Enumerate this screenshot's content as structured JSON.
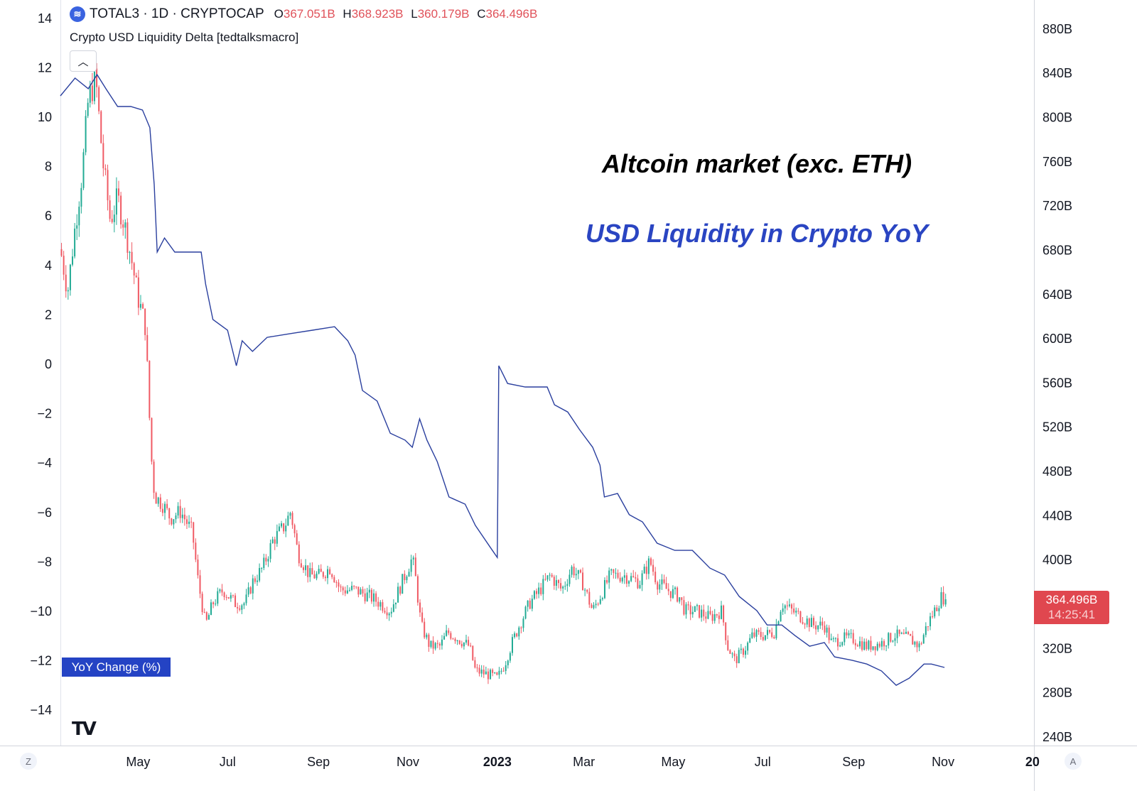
{
  "header": {
    "symbol": "TOTAL3 · 1D · CRYPTOCAP",
    "open_label": "O",
    "open": "367.051B",
    "high_label": "H",
    "high": "368.923B",
    "low_label": "L",
    "low": "360.179B",
    "close_label": "C",
    "close": "364.496B",
    "indicator": "Crypto USD Liquidity Delta [tedtalksmacro]",
    "collapse_icon": "chevron-up-icon"
  },
  "annotations": {
    "title1": "Altcoin market (exc. ETH)",
    "title2": "USD Liquidity in Crypto YoY"
  },
  "legend": {
    "label": "YoY Change (%)"
  },
  "price_tag": {
    "price": "364.496B",
    "countdown": "14:25:41"
  },
  "bottom": {
    "left_button": "Z",
    "right_button": "A"
  },
  "colors": {
    "up": "#22ab94",
    "down": "#f05a64",
    "line": "#2a3f9e",
    "accent": "#2443c4"
  },
  "chart_data": {
    "type": "candlestick+line",
    "x_origin": "2022-03-09",
    "x_units": "days since origin",
    "xlim": [
      0,
      664
    ],
    "x_ticks": [
      {
        "day": 53,
        "label": "May"
      },
      {
        "day": 114,
        "label": "Jul"
      },
      {
        "day": 176,
        "label": "Sep"
      },
      {
        "day": 237,
        "label": "Nov"
      },
      {
        "day": 298,
        "label": "2023",
        "bold": true
      },
      {
        "day": 357,
        "label": "Mar"
      },
      {
        "day": 418,
        "label": "May"
      },
      {
        "day": 479,
        "label": "Jul"
      },
      {
        "day": 541,
        "label": "Sep"
      },
      {
        "day": 602,
        "label": "Nov"
      },
      {
        "day": 663,
        "label": "20",
        "bold": true
      }
    ],
    "left_axis": {
      "label": "YoY Change (%)",
      "ylim": [
        -15.43,
        14.74
      ],
      "ticks": [
        14,
        12,
        10,
        8,
        6,
        4,
        2,
        0,
        -2,
        -4,
        -6,
        -8,
        -10,
        -12,
        -14
      ]
    },
    "right_axis": {
      "ylim": [
        232.3,
        906.2
      ],
      "ticks": [
        880,
        840,
        800,
        760,
        720,
        680,
        640,
        600,
        560,
        520,
        480,
        440,
        400,
        320,
        280,
        240
      ],
      "suffix": "B"
    },
    "candles": {
      "name": "TOTAL3 close (B)",
      "points": [
        [
          0,
          681
        ],
        [
          5,
          643
        ],
        [
          10,
          701
        ],
        [
          15,
          752
        ],
        [
          19,
          816
        ],
        [
          24,
          836
        ],
        [
          29,
          759
        ],
        [
          34,
          707
        ],
        [
          39,
          727
        ],
        [
          44,
          701
        ],
        [
          48,
          675
        ],
        [
          53,
          637
        ],
        [
          58,
          611
        ],
        [
          61,
          521
        ],
        [
          63,
          470
        ],
        [
          65,
          457
        ],
        [
          70,
          450
        ],
        [
          75,
          438
        ],
        [
          82,
          444
        ],
        [
          90,
          425
        ],
        [
          94,
          380
        ],
        [
          99,
          341
        ],
        [
          104,
          361
        ],
        [
          111,
          373
        ],
        [
          119,
          361
        ],
        [
          126,
          361
        ],
        [
          131,
          380
        ],
        [
          138,
          393
        ],
        [
          145,
          418
        ],
        [
          153,
          431
        ],
        [
          157,
          444
        ],
        [
          162,
          406
        ],
        [
          170,
          386
        ],
        [
          177,
          386
        ],
        [
          184,
          393
        ],
        [
          191,
          373
        ],
        [
          201,
          373
        ],
        [
          211,
          367
        ],
        [
          218,
          361
        ],
        [
          225,
          354
        ],
        [
          233,
          380
        ],
        [
          240,
          402
        ],
        [
          242,
          386
        ],
        [
          246,
          341
        ],
        [
          252,
          322
        ],
        [
          259,
          322
        ],
        [
          264,
          335
        ],
        [
          271,
          329
        ],
        [
          279,
          322
        ],
        [
          283,
          300
        ],
        [
          293,
          296
        ],
        [
          298,
          293
        ],
        [
          303,
          306
        ],
        [
          308,
          325
        ],
        [
          313,
          341
        ],
        [
          320,
          361
        ],
        [
          327,
          373
        ],
        [
          334,
          386
        ],
        [
          342,
          373
        ],
        [
          349,
          393
        ],
        [
          356,
          380
        ],
        [
          363,
          354
        ],
        [
          368,
          367
        ],
        [
          375,
          386
        ],
        [
          385,
          386
        ],
        [
          395,
          380
        ],
        [
          402,
          399
        ],
        [
          407,
          380
        ],
        [
          414,
          373
        ],
        [
          422,
          367
        ],
        [
          426,
          354
        ],
        [
          434,
          354
        ],
        [
          443,
          348
        ],
        [
          451,
          354
        ],
        [
          455,
          322
        ],
        [
          460,
          309
        ],
        [
          468,
          322
        ],
        [
          472,
          332
        ],
        [
          480,
          332
        ],
        [
          487,
          335
        ],
        [
          492,
          361
        ],
        [
          499,
          354
        ],
        [
          506,
          348
        ],
        [
          514,
          341
        ],
        [
          521,
          341
        ],
        [
          526,
          325
        ],
        [
          533,
          329
        ],
        [
          540,
          329
        ],
        [
          550,
          322
        ],
        [
          560,
          325
        ],
        [
          569,
          332
        ],
        [
          579,
          329
        ],
        [
          586,
          322
        ],
        [
          591,
          341
        ],
        [
          596,
          354
        ],
        [
          601,
          367
        ],
        [
          604,
          364.5
        ]
      ]
    },
    "line": {
      "name": "USD Liquidity in Crypto YoY (%)",
      "points": [
        [
          0,
          10.86
        ],
        [
          10,
          11.58
        ],
        [
          19,
          11.15
        ],
        [
          25,
          11.72
        ],
        [
          31,
          11.15
        ],
        [
          39,
          10.43
        ],
        [
          48,
          10.43
        ],
        [
          56,
          10.29
        ],
        [
          61,
          9.57
        ],
        [
          64,
          7.27
        ],
        [
          66,
          4.54
        ],
        [
          71,
          5.11
        ],
        [
          78,
          4.54
        ],
        [
          90,
          4.54
        ],
        [
          96,
          4.54
        ],
        [
          99,
          3.25
        ],
        [
          104,
          1.81
        ],
        [
          114,
          1.38
        ],
        [
          120,
          -0.06
        ],
        [
          124,
          0.95
        ],
        [
          131,
          0.52
        ],
        [
          141,
          1.09
        ],
        [
          157,
          1.24
        ],
        [
          172,
          1.38
        ],
        [
          187,
          1.52
        ],
        [
          196,
          0.95
        ],
        [
          201,
          0.37
        ],
        [
          206,
          -1.06
        ],
        [
          216,
          -1.49
        ],
        [
          225,
          -2.79
        ],
        [
          235,
          -3.07
        ],
        [
          240,
          -3.36
        ],
        [
          245,
          -2.21
        ],
        [
          250,
          -3.07
        ],
        [
          257,
          -3.94
        ],
        [
          265,
          -5.37
        ],
        [
          276,
          -5.66
        ],
        [
          283,
          -6.52
        ],
        [
          293,
          -7.39
        ],
        [
          298,
          -7.82
        ],
        [
          299,
          -0.06
        ],
        [
          305,
          -0.78
        ],
        [
          317,
          -0.92
        ],
        [
          332,
          -0.92
        ],
        [
          337,
          -1.64
        ],
        [
          346,
          -1.93
        ],
        [
          354,
          -2.64
        ],
        [
          363,
          -3.36
        ],
        [
          368,
          -4.08
        ],
        [
          371,
          -5.37
        ],
        [
          380,
          -5.23
        ],
        [
          388,
          -6.09
        ],
        [
          397,
          -6.38
        ],
        [
          407,
          -7.24
        ],
        [
          419,
          -7.53
        ],
        [
          431,
          -7.53
        ],
        [
          443,
          -8.25
        ],
        [
          453,
          -8.53
        ],
        [
          463,
          -9.4
        ],
        [
          475,
          -9.97
        ],
        [
          482,
          -10.55
        ],
        [
          492,
          -10.55
        ],
        [
          501,
          -10.98
        ],
        [
          511,
          -11.41
        ],
        [
          521,
          -11.26
        ],
        [
          528,
          -11.84
        ],
        [
          540,
          -11.98
        ],
        [
          550,
          -12.13
        ],
        [
          560,
          -12.41
        ],
        [
          570,
          -12.99
        ],
        [
          579,
          -12.7
        ],
        [
          589,
          -12.13
        ],
        [
          594,
          -12.13
        ],
        [
          603,
          -12.27
        ]
      ]
    }
  }
}
